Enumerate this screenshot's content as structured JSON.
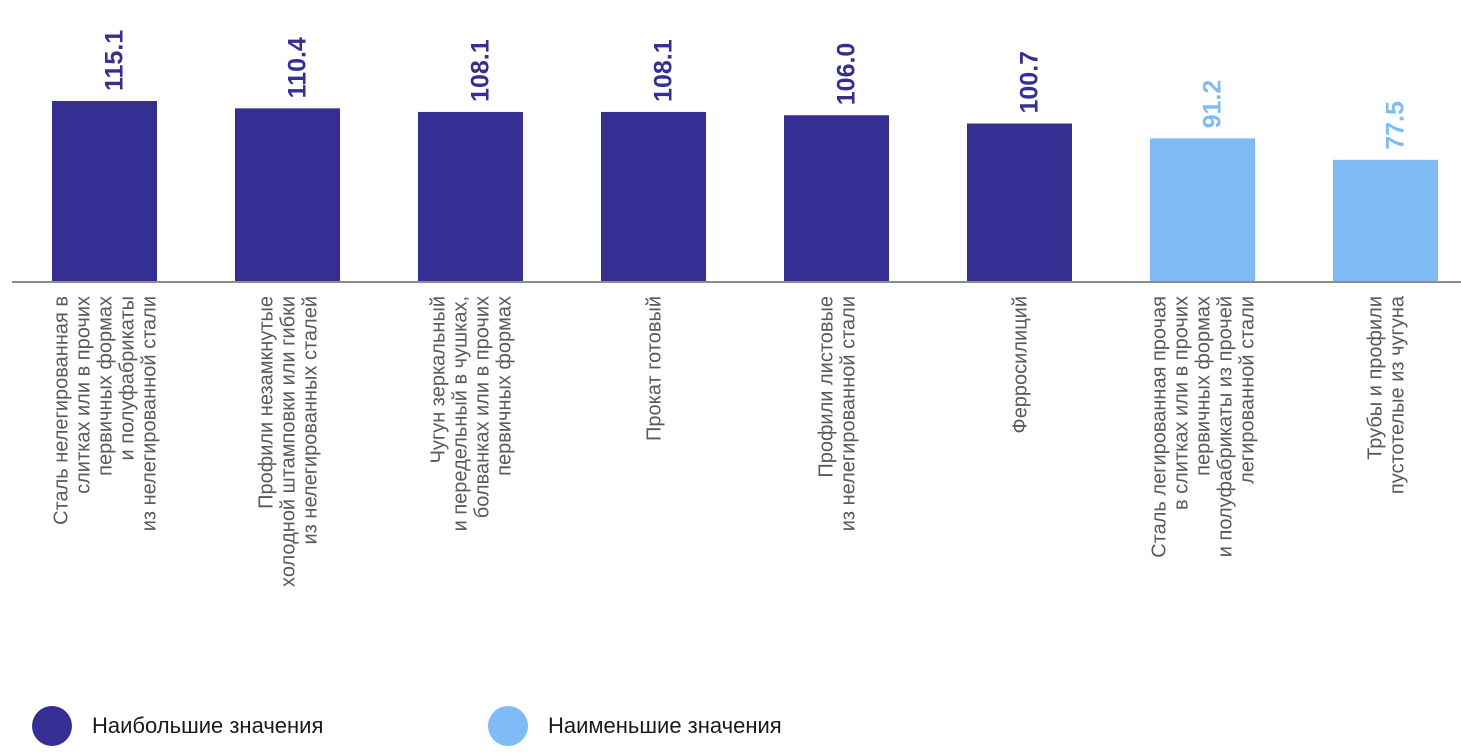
{
  "chart_data": {
    "type": "bar",
    "categories": [
      [
        "Сталь нелегированная в",
        "слитках или в прочих",
        "первичных формах",
        "и полуфабрикаты",
        "из нелегированной стали"
      ],
      [
        "Профили незамкнутые",
        "холодной штамповки или гибки",
        "из нелегированных сталей"
      ],
      [
        "Чугун зеркальный",
        "и передельный в чушках,",
        "болванках или в прочих",
        "первичных формах"
      ],
      [
        "Прокат готовый"
      ],
      [
        "Профили листовые",
        "из нелегированной стали"
      ],
      [
        "Ферросилиций"
      ],
      [
        "Сталь легированная прочая",
        "в слитках или в прочих",
        "первичных формах",
        "и полуфабрикаты из прочей",
        "легированной стали"
      ],
      [
        "Трубы и профили",
        "пустотелые из чугуна"
      ]
    ],
    "values": [
      115.1,
      110.4,
      108.1,
      108.1,
      106.0,
      100.7,
      91.2,
      77.5
    ],
    "value_labels": [
      "115.1",
      "110.4",
      "108.1",
      "108.1",
      "106.0",
      "100.7",
      "91.2",
      "77.5"
    ],
    "groups": [
      "high",
      "high",
      "high",
      "high",
      "high",
      "high",
      "low",
      "low"
    ],
    "ylim": [
      0,
      115.1
    ],
    "grid": false
  },
  "legend": {
    "high_label": "Наибольшие значения",
    "low_label": "Наименьшие значения"
  },
  "colors": {
    "high": "#362F93",
    "low": "#7EBBF7",
    "axis": "#8c8c8c",
    "category_text": "#595959",
    "legend_text": "#1a1a1a"
  }
}
